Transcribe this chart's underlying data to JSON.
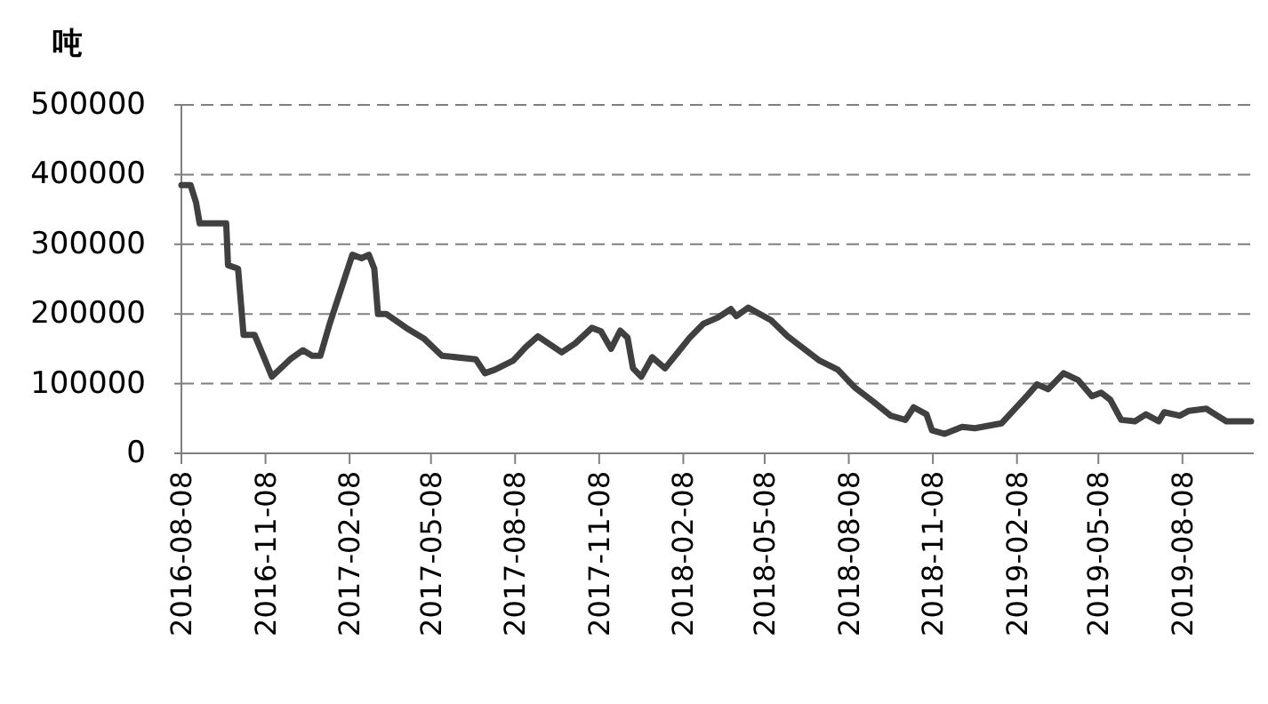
{
  "chart_data": {
    "type": "line",
    "ylabel": "吨",
    "x": [
      "2016-08-08",
      "2016-08-18",
      "2016-08-24",
      "2016-08-28",
      "2016-09-26",
      "2016-09-28",
      "2016-10-09",
      "2016-10-15",
      "2016-10-27",
      "2016-11-04",
      "2016-11-15",
      "2016-12-05",
      "2016-12-19",
      "2016-12-29",
      "2017-01-07",
      "2017-01-17",
      "2017-02-11",
      "2017-02-21",
      "2017-03-01",
      "2017-03-07",
      "2017-03-11",
      "2017-03-20",
      "2017-04-11",
      "2017-04-30",
      "2017-05-20",
      "2017-06-26",
      "2017-07-06",
      "2017-07-17",
      "2017-08-06",
      "2017-08-20",
      "2017-09-02",
      "2017-09-28",
      "2017-10-13",
      "2017-10-31",
      "2017-11-10",
      "2017-11-21",
      "2017-12-01",
      "2017-12-09",
      "2017-12-15",
      "2017-12-24",
      "2018-01-05",
      "2018-01-19",
      "2018-02-15",
      "2018-03-02",
      "2018-03-18",
      "2018-04-01",
      "2018-04-07",
      "2018-04-20",
      "2018-05-15",
      "2018-06-02",
      "2018-07-07",
      "2018-07-27",
      "2018-08-15",
      "2018-09-04",
      "2018-09-23",
      "2018-10-09",
      "2018-10-18",
      "2018-11-01",
      "2018-11-07",
      "2018-11-21",
      "2018-12-10",
      "2018-12-24",
      "2019-01-22",
      "2019-02-20",
      "2019-03-02",
      "2019-03-14",
      "2019-03-31",
      "2019-04-16",
      "2019-05-01",
      "2019-05-11",
      "2019-05-21",
      "2019-06-02",
      "2019-06-17",
      "2019-06-29",
      "2019-07-13",
      "2019-07-19",
      "2019-08-05",
      "2019-08-15",
      "2019-09-03",
      "2019-09-09",
      "2019-09-25",
      "2019-10-22"
    ],
    "series": [
      {
        "color": "#404040",
        "values": [
          385000,
          385000,
          360000,
          330000,
          330000,
          270000,
          265000,
          170000,
          170000,
          145000,
          110000,
          135000,
          148000,
          140000,
          140000,
          185000,
          285000,
          280000,
          285000,
          265000,
          200000,
          200000,
          180000,
          165000,
          140000,
          135000,
          115000,
          120000,
          133000,
          153000,
          168000,
          145000,
          158000,
          180000,
          175000,
          150000,
          176000,
          166000,
          122000,
          110000,
          138000,
          122000,
          166000,
          186000,
          195000,
          207000,
          197000,
          209000,
          191000,
          168000,
          133000,
          120000,
          94000,
          74000,
          54000,
          48000,
          66000,
          56000,
          33000,
          28000,
          38000,
          36000,
          43000,
          84000,
          99000,
          92000,
          115000,
          105000,
          82000,
          87000,
          77000,
          48000,
          46000,
          56000,
          46000,
          59000,
          54000,
          61000,
          64000,
          59000,
          46000,
          46000
        ]
      }
    ],
    "xlim": [
      "2016-08-08",
      "2019-10-25"
    ],
    "xticks": [
      "2016-08-08",
      "2016-11-08",
      "2017-02-08",
      "2017-05-08",
      "2017-08-08",
      "2017-11-08",
      "2018-02-08",
      "2018-05-08",
      "2018-08-08",
      "2018-11-08",
      "2019-02-08",
      "2019-05-08",
      "2019-08-08"
    ],
    "ylim": [
      0,
      500000
    ],
    "yticks": [
      0,
      100000,
      200000,
      300000,
      400000,
      500000
    ],
    "grid": "y",
    "marker": "none",
    "line_style": "solid"
  }
}
